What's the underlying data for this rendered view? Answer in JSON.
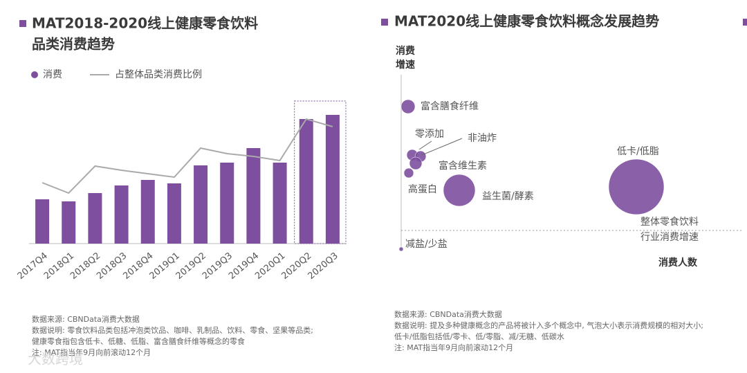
{
  "chart_data": [
    {
      "type": "bar_line",
      "title": [
        "MAT2018-2020线上健康零食饮料",
        "品类消费趋势"
      ],
      "categories": [
        "2017Q4",
        "2018Q1",
        "2018Q2",
        "2018Q3",
        "2018Q4",
        "2019Q1",
        "2019Q2",
        "2019Q3",
        "2019Q4",
        "2020Q1",
        "2020Q2",
        "2020Q3"
      ],
      "series": [
        {
          "name": "消费",
          "color": "#7d4f9e",
          "kind": "bar",
          "values": [
            64,
            61,
            73,
            84,
            92,
            87,
            113,
            117,
            138,
            117,
            180,
            186
          ]
        },
        {
          "name": "占整体品类消费比例",
          "color": "#aaaaaa",
          "kind": "line",
          "values": [
            88,
            73,
            112,
            106,
            101,
            96,
            138,
            130,
            126,
            120,
            180,
            169
          ]
        }
      ],
      "ylim": [
        0,
        200
      ],
      "notes": [
        "数据来源: CBNData消费大数据",
        "数据说明: 零食饮料品类包括冲泡类饮品、咖啡、乳制品、饮料、零食、坚果等品类;",
        "健康零食指包含低卡、低糖、低脂、富含膳食纤维等概念的零食",
        "注: MAT指当年9月向前滚动12个月"
      ]
    },
    {
      "type": "bubble",
      "title": "MAT2020线上健康零食饮料概念发展趋势",
      "y_label": [
        "消费",
        "增速"
      ],
      "x_label": "消费人数",
      "color": "#7d4f9e",
      "labels": [
        "富含膳食纤维",
        "零添加",
        "非油炸",
        "富含维生素",
        "高蛋白",
        "益生菌/酵素",
        "低卡/低脂",
        "减盐/少盐"
      ],
      "x": [
        10,
        16,
        28,
        21,
        11,
        84,
        340,
        0
      ],
      "y": [
        206,
        136,
        134,
        124,
        110,
        85,
        90,
        0
      ],
      "sizes": [
        10,
        8,
        8,
        9,
        7,
        23,
        40,
        3
      ],
      "xlim": [
        0,
        430
      ],
      "ylim": [
        0,
        290
      ],
      "reference_line": {
        "value": 27,
        "label": [
          "整体零食饮料",
          "行业消费增速"
        ]
      },
      "notes": [
        "数据来源: CBNData消费大数据",
        "数据说明: 提及多种健康概念的产品将被计入多个概念中, 气泡大小表示消费规模的相对大小;",
        "低卡/低脂包括低/零卡、低/零脂、减/无糖、低碳水",
        "注: MAT指当年9月向前滚动12个月"
      ]
    }
  ],
  "watermark": "大数跨境"
}
